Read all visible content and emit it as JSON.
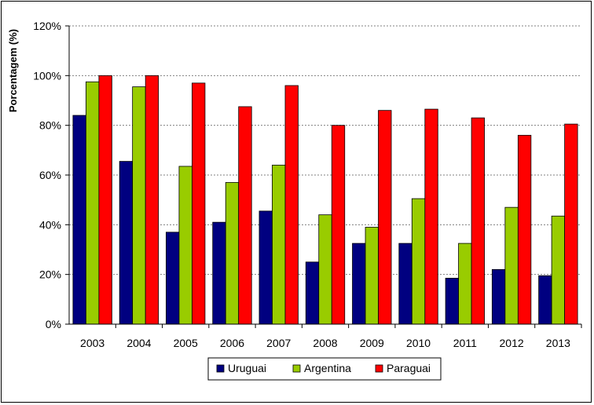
{
  "chart_data": {
    "type": "bar",
    "ylabel": "Porcentagem (%)",
    "categories": [
      "2003",
      "2004",
      "2005",
      "2006",
      "2007",
      "2008",
      "2009",
      "2010",
      "2011",
      "2012",
      "2013"
    ],
    "ylim": [
      0,
      120
    ],
    "yticks": [
      "0%",
      "20%",
      "40%",
      "60%",
      "80%",
      "100%",
      "120%"
    ],
    "grid": true,
    "legend_position": "bottom",
    "series": [
      {
        "name": "Uruguai",
        "color": "#000080",
        "values": [
          84,
          65.5,
          37,
          41,
          45.5,
          25,
          32.5,
          32.5,
          18.5,
          22,
          19.5
        ]
      },
      {
        "name": "Argentina",
        "color": "#99CC00",
        "values": [
          97.5,
          95.5,
          63.5,
          57,
          64,
          44,
          39,
          50.5,
          32.5,
          47,
          43.5
        ]
      },
      {
        "name": "Paraguai",
        "color": "#FF0000",
        "values": [
          100,
          100,
          97,
          87.5,
          96,
          80,
          86,
          86.5,
          83,
          76,
          80.5
        ]
      }
    ]
  }
}
